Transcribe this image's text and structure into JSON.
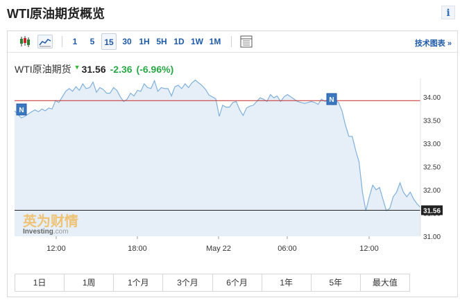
{
  "header": {
    "title": "WTI原油期货概览",
    "info_icon": "i"
  },
  "toolbar": {
    "chart_icons": [
      "candlestick-icon",
      "area-chart-icon"
    ],
    "intervals": [
      "1",
      "5",
      "15",
      "30",
      "1H",
      "5H",
      "1D",
      "1W",
      "1M"
    ],
    "active_interval": "15",
    "table_icon": "table-icon",
    "advanced_link": "技术图表 »"
  },
  "quote": {
    "name": "WTI原油期货",
    "direction_icon": "down-arrow-icon",
    "price": "31.56",
    "change": "-2.36",
    "change_pct": "(-6.96%)",
    "change_color": "#28a745"
  },
  "watermark": {
    "brand_cn": "英为财情",
    "brand_en": "Investing",
    "brand_suffix": ".com"
  },
  "markers": [
    "N",
    "N"
  ],
  "period_tabs": [
    "1日",
    "1周",
    "1个月",
    "3个月",
    "6个月",
    "1年",
    "5年",
    "最大值"
  ],
  "colors": {
    "line": "#7fb0dc",
    "fill": "#e6eff8",
    "ref_line": "#c62828",
    "last_line": "#222222",
    "accent": "#1f5aa8"
  },
  "chart_data": {
    "type": "area",
    "xlabel": "",
    "ylabel": "",
    "x_ticks": [
      "12:00",
      "18:00",
      "May 22",
      "06:00",
      "12:00"
    ],
    "y_ticks": [
      "34.00",
      "33.50",
      "33.00",
      "32.50",
      "32.00",
      "31.50",
      "31.00"
    ],
    "ylim": [
      31.0,
      34.4
    ],
    "reference_line": 33.92,
    "last_value": 31.56,
    "last_label": "31.56",
    "grid": false,
    "values": [
      33.7,
      33.62,
      33.55,
      33.58,
      33.63,
      33.68,
      33.72,
      33.68,
      33.74,
      33.7,
      33.76,
      33.74,
      33.92,
      33.88,
      34.0,
      34.12,
      34.18,
      34.12,
      34.22,
      34.14,
      34.28,
      34.18,
      34.2,
      34.32,
      34.1,
      34.2,
      34.16,
      34.08,
      34.08,
      34.2,
      34.14,
      34.0,
      33.9,
      33.95,
      34.08,
      34.02,
      34.14,
      34.12,
      34.28,
      34.2,
      34.18,
      34.35,
      34.12,
      34.2,
      34.18,
      34.18,
      34.02,
      34.22,
      34.25,
      34.18,
      34.28,
      34.2,
      34.3,
      34.36,
      34.3,
      34.24,
      34.16,
      34.04,
      34.0,
      33.96,
      33.58,
      33.82,
      33.78,
      33.78,
      33.88,
      33.9,
      33.72,
      33.6,
      33.76,
      33.8,
      33.82,
      33.9,
      33.98,
      33.95,
      33.9,
      34.05,
      33.98,
      34.02,
      33.9,
      34.0,
      34.05,
      34.0,
      33.95,
      33.9,
      33.88,
      33.86,
      33.88,
      33.9,
      33.88,
      33.84,
      33.95,
      33.9,
      33.95,
      33.95,
      33.92,
      33.88,
      33.7,
      33.4,
      33.15,
      33.15,
      32.85,
      32.6,
      31.95,
      31.55,
      31.85,
      32.1,
      32.0,
      32.05,
      31.8,
      31.55,
      31.6,
      31.85,
      31.95,
      32.15,
      31.95,
      31.85,
      31.95,
      31.8,
      31.7,
      31.62
    ]
  }
}
